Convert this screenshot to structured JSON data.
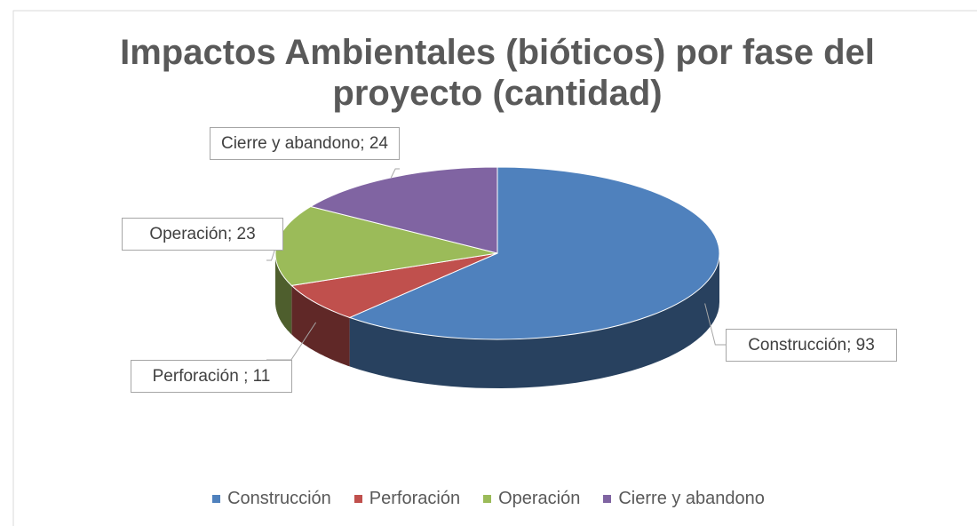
{
  "chart_data": {
    "type": "pie3d",
    "title": "Impactos Ambientales (bióticos) por fase del proyecto (cantidad)",
    "categories": [
      "Construcción",
      "Perforación",
      "Operación",
      "Cierre y abandono"
    ],
    "values": [
      93,
      11,
      23,
      24
    ],
    "value_labels": [
      "Construcción; 93",
      "Perforación ; 11",
      "Operación; 23",
      "Cierre y abandono; 24"
    ],
    "colors": [
      "#4f81bd",
      "#c0504d",
      "#9bbb59",
      "#8064a2"
    ],
    "legend": "bottom"
  }
}
